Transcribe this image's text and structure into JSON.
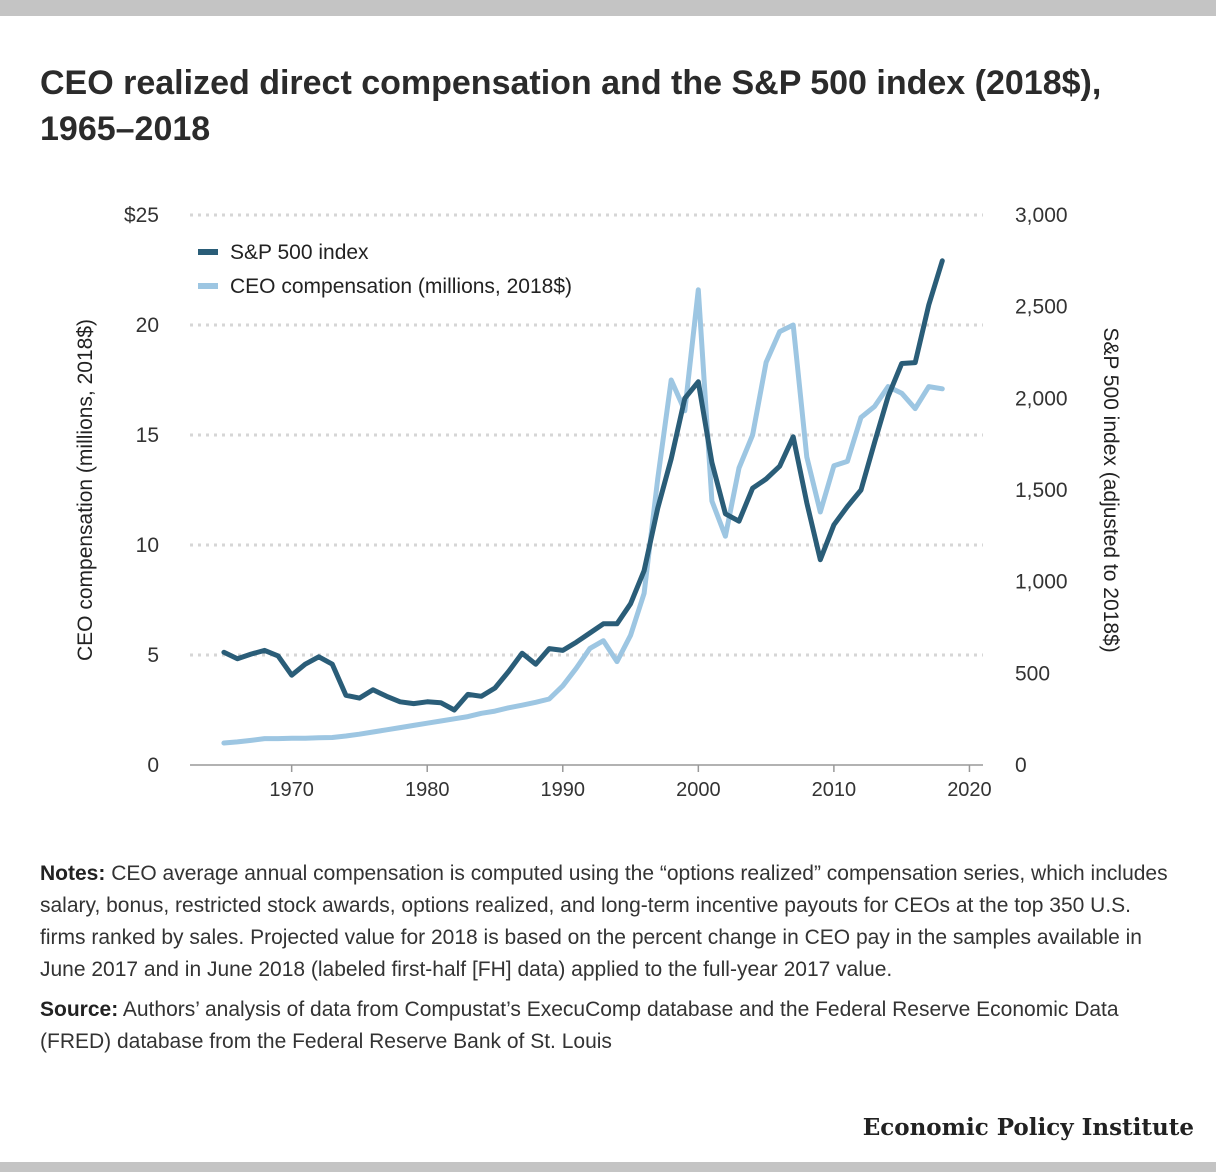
{
  "title": "CEO realized direct compensation and the S&P 500 index (2018$), 1965–2018",
  "notes": {
    "notes_label": "Notes:",
    "notes_text": "CEO average annual compensation is computed using the “options realized” compensation series, which includes salary, bonus, restricted stock awards, options realized, and long-term incentive payouts for CEOs at the top 350 U.S. firms ranked by sales. Projected value for 2018 is based on the percent change in CEO pay in the samples available in June 2017 and in June 2018 (labeled first-half [FH] data) applied to the full-year 2017 value.",
    "source_label": "Source:",
    "source_text": "Authors’ analysis of data from Compustat’s ExecuComp database and the Federal Reserve Economic Data (FRED) database from the Federal Reserve Bank of St. Louis"
  },
  "brand": "Economic Policy Institute",
  "colors": {
    "sp500": "#2a5d78",
    "ceo": "#9dc6e2",
    "grid": "#d6d6d6",
    "axis": "#999999"
  },
  "chart_data": {
    "type": "line",
    "xlabel": "",
    "ylabel_left": "CEO compensation (millions, 2018$)",
    "ylabel_right": "S&P 500 index (adjusted to 2018$)",
    "xlim": [
      1962.5,
      2021
    ],
    "xticks": [
      1970,
      1980,
      1990,
      2000,
      2010,
      2020
    ],
    "xtick_labels": [
      "1970",
      "1980",
      "1990",
      "2000",
      "2010",
      "2020"
    ],
    "ylim_left": [
      0,
      25
    ],
    "yticks_left": [
      0,
      5,
      10,
      15,
      20,
      25
    ],
    "ytick_labels_left": [
      "0",
      "5",
      "10",
      "15",
      "20",
      "$25"
    ],
    "ylim_right": [
      0,
      3000
    ],
    "yticks_right": [
      0,
      500,
      1000,
      1500,
      2000,
      2500,
      3000
    ],
    "ytick_labels_right": [
      "0",
      "500",
      "1,000",
      "1,500",
      "2,000",
      "2,500",
      "3,000"
    ],
    "grid": true,
    "legend_position": "top-left",
    "x": [
      1965,
      1966,
      1967,
      1968,
      1969,
      1970,
      1971,
      1972,
      1973,
      1974,
      1975,
      1976,
      1977,
      1978,
      1979,
      1980,
      1981,
      1982,
      1983,
      1984,
      1985,
      1986,
      1987,
      1988,
      1989,
      1990,
      1991,
      1992,
      1993,
      1994,
      1995,
      1996,
      1997,
      1998,
      1999,
      2000,
      2001,
      2002,
      2003,
      2004,
      2005,
      2006,
      2007,
      2008,
      2009,
      2010,
      2011,
      2012,
      2013,
      2014,
      2015,
      2016,
      2017,
      2018
    ],
    "series": [
      {
        "name": "S&P 500 index",
        "axis": "right",
        "color": "#2a5d78",
        "values": [
          615,
          580,
          605,
          625,
          595,
          490,
          550,
          590,
          550,
          380,
          365,
          410,
          375,
          345,
          335,
          345,
          340,
          300,
          385,
          375,
          420,
          510,
          610,
          550,
          635,
          625,
          670,
          720,
          770,
          770,
          880,
          1060,
          1400,
          1670,
          2000,
          2090,
          1650,
          1370,
          1330,
          1510,
          1560,
          1630,
          1790,
          1430,
          1120,
          1310,
          1410,
          1500,
          1760,
          2010,
          2190,
          2195,
          2510,
          2750
        ]
      },
      {
        "name": "CEO compensation (millions, 2018$)",
        "axis": "left",
        "color": "#9dc6e2",
        "values": [
          1.0,
          1.05,
          1.12,
          1.2,
          1.2,
          1.22,
          1.22,
          1.24,
          1.25,
          1.32,
          1.4,
          1.5,
          1.6,
          1.7,
          1.8,
          1.9,
          2.0,
          2.1,
          2.2,
          2.35,
          2.45,
          2.6,
          2.72,
          2.85,
          3.0,
          3.6,
          4.4,
          5.3,
          5.65,
          4.7,
          5.9,
          7.8,
          13.0,
          17.5,
          16.1,
          21.6,
          12.0,
          10.4,
          13.5,
          15.0,
          18.3,
          19.7,
          20.0,
          14.0,
          11.5,
          13.6,
          13.8,
          15.8,
          16.3,
          17.2,
          16.9,
          16.2,
          17.2,
          17.1
        ]
      }
    ]
  }
}
